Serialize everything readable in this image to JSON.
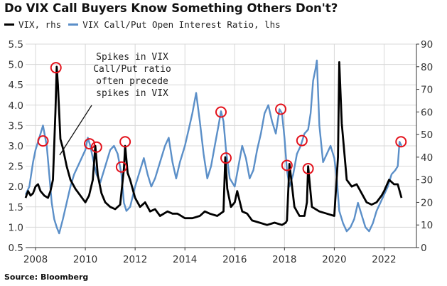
{
  "title": "Do VIX Call Buyers Know Something Others Don't?",
  "legend": [
    {
      "label": "VIX, rhs",
      "color": "#000000"
    },
    {
      "label": "VIX Call/Put Open Interest Ratio, lhs",
      "color": "#5b8fc8"
    }
  ],
  "source": "Source: Bloomberg",
  "annotation": [
    "Spikes in VIX",
    "Call/Put ratio",
    "often precede",
    "spikes in VIX"
  ],
  "chart_data": {
    "type": "line",
    "title": "Do VIX Call Buyers Know Something Others Don't?",
    "x_ticks": [
      "2008",
      "2010",
      "2012",
      "2014",
      "2016",
      "2018",
      "2020",
      "2022"
    ],
    "xlim": [
      2007.6,
      2023.3
    ],
    "left_axis": {
      "ylim": [
        0.5,
        5.5
      ],
      "ticks": [
        "0.5",
        "1.0",
        "1.5",
        "2.0",
        "2.5",
        "3.0",
        "3.5",
        "4.0",
        "4.5",
        "5.0",
        "5.5"
      ]
    },
    "right_axis": {
      "ylim": [
        0,
        90
      ],
      "ticks": [
        "0",
        "10",
        "20",
        "30",
        "40",
        "50",
        "60",
        "70",
        "80",
        "90"
      ]
    },
    "grid": "vertical and horizontal",
    "series": [
      {
        "name": "VIX Call/Put Open Interest Ratio, lhs",
        "axis": "left",
        "color": "#5b8fc8",
        "x": [
          2007.6,
          2007.75,
          2007.9,
          2008.0,
          2008.15,
          2008.3,
          2008.45,
          2008.55,
          2008.65,
          2008.75,
          2008.85,
          2008.95,
          2009.1,
          2009.25,
          2009.4,
          2009.55,
          2009.7,
          2009.85,
          2010.0,
          2010.1,
          2010.2,
          2010.3,
          2010.45,
          2010.6,
          2010.75,
          2010.9,
          2011.0,
          2011.15,
          2011.3,
          2011.45,
          2011.55,
          2011.65,
          2011.8,
          2012.0,
          2012.2,
          2012.35,
          2012.5,
          2012.65,
          2012.8,
          2013.0,
          2013.2,
          2013.35,
          2013.5,
          2013.65,
          2013.8,
          2014.0,
          2014.15,
          2014.3,
          2014.45,
          2014.6,
          2014.75,
          2014.9,
          2015.05,
          2015.2,
          2015.35,
          2015.45,
          2015.55,
          2015.65,
          2015.8,
          2016.0,
          2016.15,
          2016.3,
          2016.45,
          2016.6,
          2016.75,
          2016.9,
          2017.05,
          2017.2,
          2017.35,
          2017.5,
          2017.65,
          2017.8,
          2017.9,
          2018.0,
          2018.1,
          2018.2,
          2018.35,
          2018.5,
          2018.65,
          2018.8,
          2018.95,
          2019.05,
          2019.15,
          2019.25,
          2019.3,
          2019.4,
          2019.55,
          2019.7,
          2019.85,
          2020.0,
          2020.1,
          2020.2,
          2020.35,
          2020.5,
          2020.65,
          2020.8,
          2020.95,
          2021.1,
          2021.25,
          2021.4,
          2021.55,
          2021.7,
          2021.85,
          2022.0,
          2022.15,
          2022.3,
          2022.45,
          2022.55,
          2022.62,
          2022.7
        ],
        "values": [
          1.8,
          2.0,
          2.6,
          2.9,
          3.2,
          3.5,
          3.0,
          2.3,
          1.6,
          1.2,
          1.0,
          0.85,
          1.2,
          1.6,
          2.0,
          2.3,
          2.5,
          2.7,
          2.9,
          3.2,
          3.0,
          2.7,
          2.3,
          2.1,
          2.4,
          2.7,
          2.9,
          3.0,
          2.8,
          2.3,
          1.6,
          1.4,
          1.5,
          2.0,
          2.4,
          2.7,
          2.3,
          2.0,
          2.2,
          2.6,
          3.0,
          3.2,
          2.6,
          2.2,
          2.6,
          3.0,
          3.4,
          3.8,
          4.3,
          3.6,
          2.8,
          2.2,
          2.5,
          3.0,
          3.5,
          3.85,
          3.6,
          2.9,
          2.2,
          2.0,
          2.5,
          3.0,
          2.7,
          2.2,
          2.4,
          2.9,
          3.3,
          3.8,
          4.0,
          3.6,
          3.3,
          3.9,
          3.8,
          3.2,
          2.4,
          2.0,
          2.3,
          2.8,
          3.0,
          3.3,
          3.4,
          3.8,
          4.6,
          4.9,
          5.1,
          3.5,
          2.6,
          2.8,
          3.0,
          2.7,
          2.2,
          1.4,
          1.1,
          0.9,
          1.0,
          1.2,
          1.6,
          1.3,
          1.0,
          0.9,
          1.1,
          1.4,
          1.6,
          1.8,
          2.0,
          2.3,
          2.4,
          2.5,
          3.1,
          3.0
        ]
      },
      {
        "name": "VIX, rhs",
        "axis": "right",
        "color": "#000000",
        "x": [
          2007.6,
          2007.7,
          2007.8,
          2007.9,
          2008.0,
          2008.1,
          2008.2,
          2008.35,
          2008.5,
          2008.6,
          2008.7,
          2008.8,
          2008.85,
          2008.9,
          2009.0,
          2009.1,
          2009.25,
          2009.4,
          2009.6,
          2009.8,
          2010.0,
          2010.15,
          2010.3,
          2010.4,
          2010.5,
          2010.65,
          2010.8,
          2011.0,
          2011.2,
          2011.4,
          2011.55,
          2011.6,
          2011.7,
          2011.8,
          2012.0,
          2012.2,
          2012.4,
          2012.6,
          2012.8,
          2013.0,
          2013.3,
          2013.5,
          2013.7,
          2014.0,
          2014.3,
          2014.6,
          2014.8,
          2015.0,
          2015.3,
          2015.55,
          2015.62,
          2015.7,
          2015.85,
          2016.0,
          2016.1,
          2016.3,
          2016.5,
          2016.7,
          2017.0,
          2017.3,
          2017.6,
          2017.9,
          2018.05,
          2018.1,
          2018.2,
          2018.4,
          2018.6,
          2018.8,
          2018.9,
          2018.95,
          2019.1,
          2019.4,
          2019.7,
          2020.0,
          2020.15,
          2020.2,
          2020.3,
          2020.5,
          2020.7,
          2020.9,
          2021.1,
          2021.3,
          2021.5,
          2021.7,
          2021.9,
          2022.0,
          2022.2,
          2022.4,
          2022.55,
          2022.7
        ],
        "values": [
          22,
          25,
          23,
          24,
          27,
          28,
          25,
          23,
          22,
          25,
          30,
          60,
          80,
          72,
          48,
          44,
          36,
          30,
          26,
          23,
          20,
          23,
          30,
          45,
          32,
          24,
          20,
          18,
          17,
          19,
          35,
          45,
          33,
          30,
          22,
          18,
          20,
          16,
          17,
          14,
          16,
          15,
          15,
          13,
          13,
          14,
          16,
          15,
          14,
          16,
          40,
          26,
          18,
          20,
          25,
          16,
          15,
          12,
          11,
          10,
          11,
          10,
          11,
          12,
          37,
          18,
          14,
          14,
          20,
          36,
          18,
          16,
          15,
          14,
          40,
          82,
          55,
          30,
          27,
          28,
          24,
          20,
          19,
          20,
          23,
          25,
          30,
          28,
          28,
          22
        ]
      }
    ],
    "highlights": [
      {
        "axis": "left",
        "x": 2008.3,
        "y": 3.12
      },
      {
        "axis": "left",
        "x": 2008.82,
        "y": 4.92
      },
      {
        "axis": "left",
        "x": 2010.17,
        "y": 3.05
      },
      {
        "axis": "left",
        "x": 2010.45,
        "y": 2.97
      },
      {
        "axis": "left",
        "x": 2011.45,
        "y": 2.48
      },
      {
        "axis": "left",
        "x": 2011.6,
        "y": 3.1
      },
      {
        "axis": "left",
        "x": 2015.45,
        "y": 3.83
      },
      {
        "axis": "left",
        "x": 2015.65,
        "y": 2.7
      },
      {
        "axis": "left",
        "x": 2017.85,
        "y": 3.9
      },
      {
        "axis": "left",
        "x": 2018.1,
        "y": 2.52
      },
      {
        "axis": "left",
        "x": 2018.7,
        "y": 3.13
      },
      {
        "axis": "left",
        "x": 2018.95,
        "y": 2.44
      },
      {
        "axis": "left",
        "x": 2022.68,
        "y": 3.1
      }
    ]
  }
}
